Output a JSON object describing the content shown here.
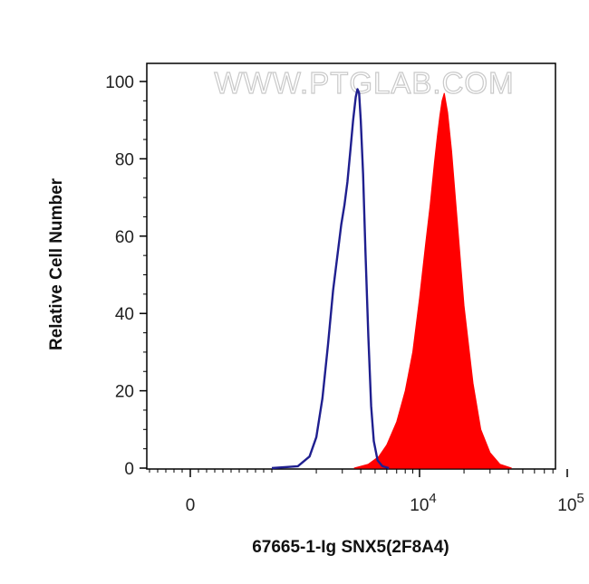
{
  "chart_data": {
    "type": "area",
    "watermark": "WWW.PTGLAB.COM",
    "xlabel": "67665-1-Ig SNX5(2F8A4)",
    "ylabel": "Relative Cell Number",
    "x_scale": "biexponential (log above ~10^3)",
    "xlim": [
      -300,
      120000
    ],
    "ylim": [
      0,
      100
    ],
    "y_ticks": [
      {
        "value": 0,
        "label": "0"
      },
      {
        "value": 20,
        "label": "20"
      },
      {
        "value": 40,
        "label": "40"
      },
      {
        "value": 60,
        "label": "60"
      },
      {
        "value": 80,
        "label": "80"
      },
      {
        "value": 100,
        "label": "100"
      }
    ],
    "x_ticks": [
      {
        "value": 0,
        "label": "0",
        "exponent": ""
      },
      {
        "value": 10000,
        "label": "10",
        "exponent": "4"
      },
      {
        "value": 100000,
        "label": "10",
        "exponent": "5"
      }
    ],
    "grid": false,
    "series": [
      {
        "style": "outline",
        "color": "#1f1f8f",
        "x": [
          1000,
          1500,
          1800,
          2000,
          2200,
          2400,
          2600,
          2800,
          2950,
          3100,
          3250,
          3400,
          3550,
          3700,
          3800,
          3900,
          4000,
          4150,
          4300,
          4500,
          4700,
          4900,
          5200,
          5600,
          6200
        ],
        "y": [
          0,
          0.5,
          3,
          8,
          18,
          32,
          46,
          56,
          63,
          68,
          74,
          82,
          90,
          96,
          98,
          97,
          90,
          76,
          56,
          34,
          16,
          7,
          2,
          0.5,
          0
        ]
      },
      {
        "style": "filled",
        "color": "#ff0000",
        "x": [
          3600,
          4500,
          5300,
          6000,
          7000,
          8000,
          9000,
          10000,
          11000,
          11800,
          12600,
          13200,
          13700,
          14200,
          14700,
          15500,
          16500,
          18000,
          20000,
          23000,
          26000,
          30000,
          35000,
          42000
        ],
        "y": [
          0,
          1,
          3,
          6,
          12,
          20,
          30,
          44,
          58,
          68,
          79,
          86,
          91,
          95,
          97,
          92,
          82,
          64,
          42,
          22,
          10,
          4,
          1,
          0
        ]
      }
    ]
  }
}
